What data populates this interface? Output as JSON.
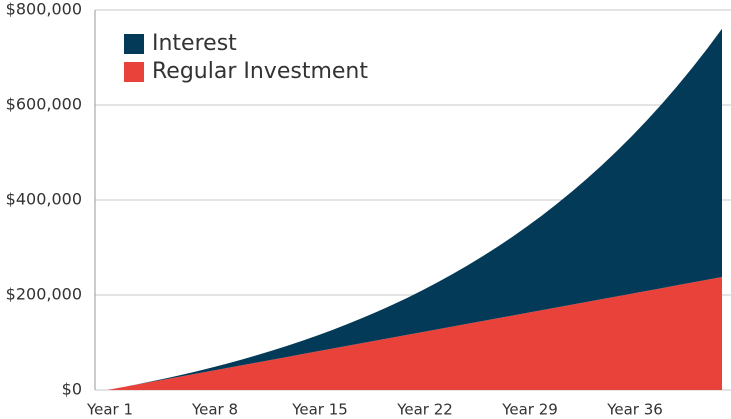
{
  "chart_data": {
    "type": "stacked-area",
    "categories": [
      "Year 1",
      null,
      null,
      null,
      null,
      null,
      null,
      "Year 8",
      null,
      null,
      null,
      null,
      null,
      null,
      "Year 15",
      null,
      null,
      null,
      null,
      null,
      null,
      "Year 22",
      null,
      null,
      null,
      null,
      null,
      null,
      "Year 29",
      null,
      null,
      null,
      null,
      null,
      null,
      "Year 36",
      null,
      null,
      null,
      null,
      null,
      null
    ],
    "series": [
      {
        "name": "Regular Investment",
        "color": "#e8423a",
        "values": [
          0,
          5800,
          11600,
          17400,
          23200,
          29000,
          34800,
          40600,
          46400,
          52200,
          58000,
          63800,
          69600,
          75400,
          81200,
          87000,
          92800,
          98600,
          104400,
          110200,
          116000,
          121800,
          127600,
          133400,
          139200,
          145000,
          150800,
          156600,
          162400,
          168200,
          174000,
          179800,
          185600,
          191400,
          197200,
          203000,
          208800,
          214600,
          220400,
          226200,
          232000,
          237800
        ]
      },
      {
        "name": "Interest",
        "color": "#033a57",
        "values": [
          0,
          0,
          300,
          900,
          1800,
          3100,
          4800,
          6800,
          9200,
          12000,
          15300,
          19000,
          23200,
          28000,
          33300,
          39100,
          45500,
          52600,
          60300,
          68700,
          77800,
          87700,
          98400,
          109900,
          122300,
          135700,
          150000,
          165300,
          181700,
          199300,
          218000,
          238000,
          259300,
          282000,
          306200,
          331800,
          359100,
          388100,
          418800,
          451400,
          486000,
          522600
        ]
      }
    ],
    "ylim": [
      0,
      800000
    ],
    "yticks": [
      {
        "value": 0,
        "label": "$0"
      },
      {
        "value": 200000,
        "label": "$200,000"
      },
      {
        "value": 400000,
        "label": "$400,000"
      },
      {
        "value": 600000,
        "label": "$600,000"
      },
      {
        "value": 800000,
        "label": "$800,000"
      }
    ],
    "grid": true
  }
}
